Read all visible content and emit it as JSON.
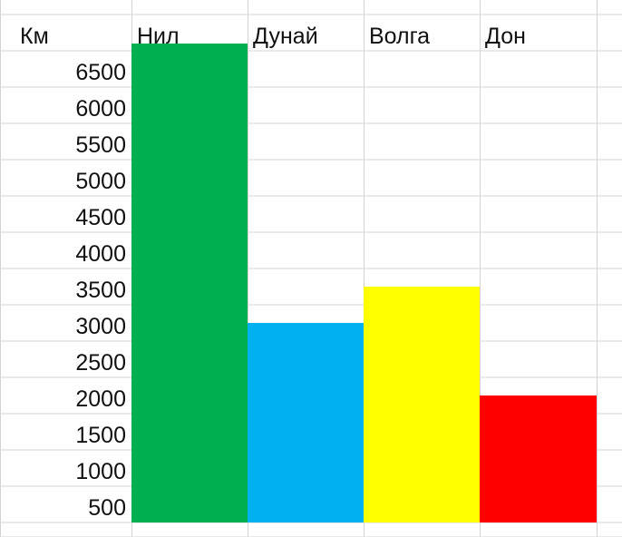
{
  "chart_data": {
    "type": "bar",
    "corner_label": "Км",
    "categories": [
      "Нил",
      "Дунай",
      "Волга",
      "Дон"
    ],
    "values": [
      6850,
      3000,
      3500,
      2000
    ],
    "colors": [
      "#00b050",
      "#00b0f0",
      "#ffff00",
      "#ff0000"
    ],
    "y_ticks": [
      "6500",
      "6000",
      "5500",
      "5000",
      "4500",
      "4000",
      "3500",
      "3000",
      "2500",
      "2000",
      "1500",
      "1000",
      "500"
    ],
    "grid": true,
    "gridline_color": "#d4d4d4"
  }
}
